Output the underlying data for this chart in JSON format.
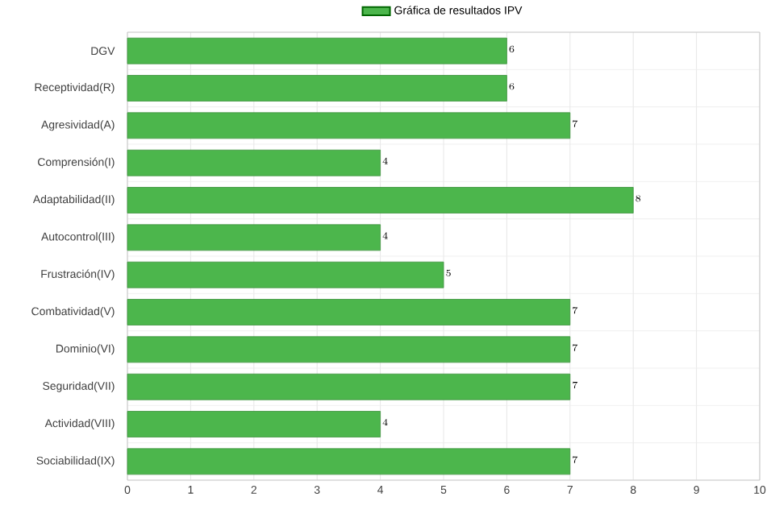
{
  "chart_data": {
    "type": "bar",
    "orientation": "horizontal",
    "categories": [
      "DGV",
      "Receptividad(R)",
      "Agresividad(A)",
      "Comprensión(I)",
      "Adaptabilidad(II)",
      "Autocontrol(III)",
      "Frustración(IV)",
      "Combatividad(V)",
      "Dominio(VI)",
      "Seguridad(VII)",
      "Actividad(VIII)",
      "Sociabilidad(IX)"
    ],
    "series": [
      {
        "name": "Gráfica de resultados IPV",
        "color": "#4cb64c",
        "values": [
          6,
          6,
          7,
          4,
          8,
          4,
          5,
          7,
          7,
          7,
          4,
          7
        ]
      }
    ],
    "xlim": [
      0,
      10
    ],
    "xticks": [
      0,
      1,
      2,
      3,
      4,
      5,
      6,
      7,
      8,
      9,
      10
    ],
    "grid": true,
    "legend": "top",
    "data_labels": true
  }
}
